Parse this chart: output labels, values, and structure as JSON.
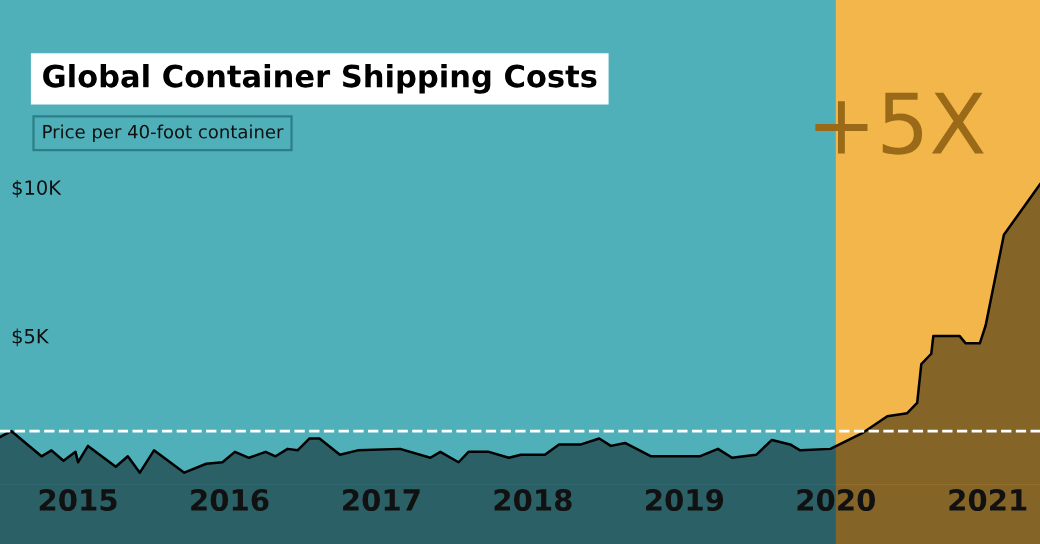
{
  "chart_data": {
    "type": "area",
    "title": "Global Container Shipping Costs",
    "subtitle": "Price per 40-foot container",
    "annotations": [
      "+5X"
    ],
    "x": [
      "2014-06-27",
      "2014-07-24",
      "2014-10-05",
      "2014-10-29",
      "2014-11-27",
      "2014-12-26",
      "2015-01-01",
      "2015-01-25",
      "2015-04-02",
      "2015-05-01",
      "2015-05-30",
      "2015-07-03",
      "2015-09-14",
      "2015-11-06",
      "2015-12-15",
      "2016-01-14",
      "2016-02-17",
      "2016-03-28",
      "2016-04-21",
      "2016-05-20",
      "2016-06-13",
      "2016-07-12",
      "2016-08-05",
      "2016-09-23",
      "2016-11-05",
      "2017-02-15",
      "2017-04-29",
      "2017-05-23",
      "2017-07-06",
      "2017-07-30",
      "2017-09-17",
      "2017-11-04",
      "2017-12-03",
      "2018-01-30",
      "2018-03-05",
      "2018-04-27",
      "2018-06-10",
      "2018-07-08",
      "2018-08-11",
      "2018-10-13",
      "2019-02-07",
      "2019-03-23",
      "2019-04-26",
      "2019-06-23",
      "2019-07-31",
      "2019-09-13",
      "2019-10-07",
      "2019-12-19",
      "2020-03-07",
      "2020-05-04",
      "2020-06-21",
      "2020-07-15",
      "2020-07-25",
      "2020-08-18",
      "2020-08-23",
      "2020-10-25",
      "2020-11-09",
      "2020-12-13",
      "2020-12-27",
      "2021-02-09",
      "2021-05-07"
    ],
    "series": [
      {
        "color": "#000000",
        "values": [
          1600,
          1800,
          950,
          1150,
          800,
          1100,
          750,
          1300,
          600,
          950,
          400,
          1150,
          400,
          700,
          750,
          1100,
          900,
          1100,
          950,
          1200,
          1150,
          1550,
          1550,
          1000,
          1150,
          1200,
          900,
          1100,
          750,
          1100,
          1100,
          900,
          1000,
          1000,
          1350,
          1350,
          1550,
          1300,
          1400,
          950,
          950,
          1200,
          900,
          1000,
          1500,
          1350,
          1150,
          1200,
          1750,
          2300,
          2400,
          2750,
          4050,
          4400,
          5000,
          5000,
          4750,
          4750,
          5350,
          8400,
          10100
        ]
      }
    ],
    "xlim": [
      "2014-06-27",
      "2021-05-07"
    ],
    "ylim": [
      -2000,
      16300
    ],
    "xticks": [
      {
        "value": "2015-01-01",
        "label": "2015"
      },
      {
        "value": "2016-01-01",
        "label": "2016"
      },
      {
        "value": "2017-01-01",
        "label": "2017"
      },
      {
        "value": "2018-01-01",
        "label": "2018"
      },
      {
        "value": "2019-01-01",
        "label": "2019"
      },
      {
        "value": "2020-01-01",
        "label": "2020"
      },
      {
        "value": "2021-01-01",
        "label": "2021"
      }
    ],
    "yticks": [
      {
        "value": 5000,
        "label": "$5K"
      },
      {
        "value": 10000,
        "label": "$10K"
      }
    ],
    "ref_lines": [
      {
        "axis": "y",
        "value": 1800,
        "color": "#ffffff",
        "line_style": "dashed"
      }
    ],
    "bands": [
      {
        "axis": "x",
        "from": "2020-01-01",
        "to": "2021-05-07",
        "color": "#f2b64a"
      },
      {
        "axis": "y",
        "from": -2000,
        "to": 0,
        "color": "#000000"
      }
    ],
    "grid": false
  }
}
